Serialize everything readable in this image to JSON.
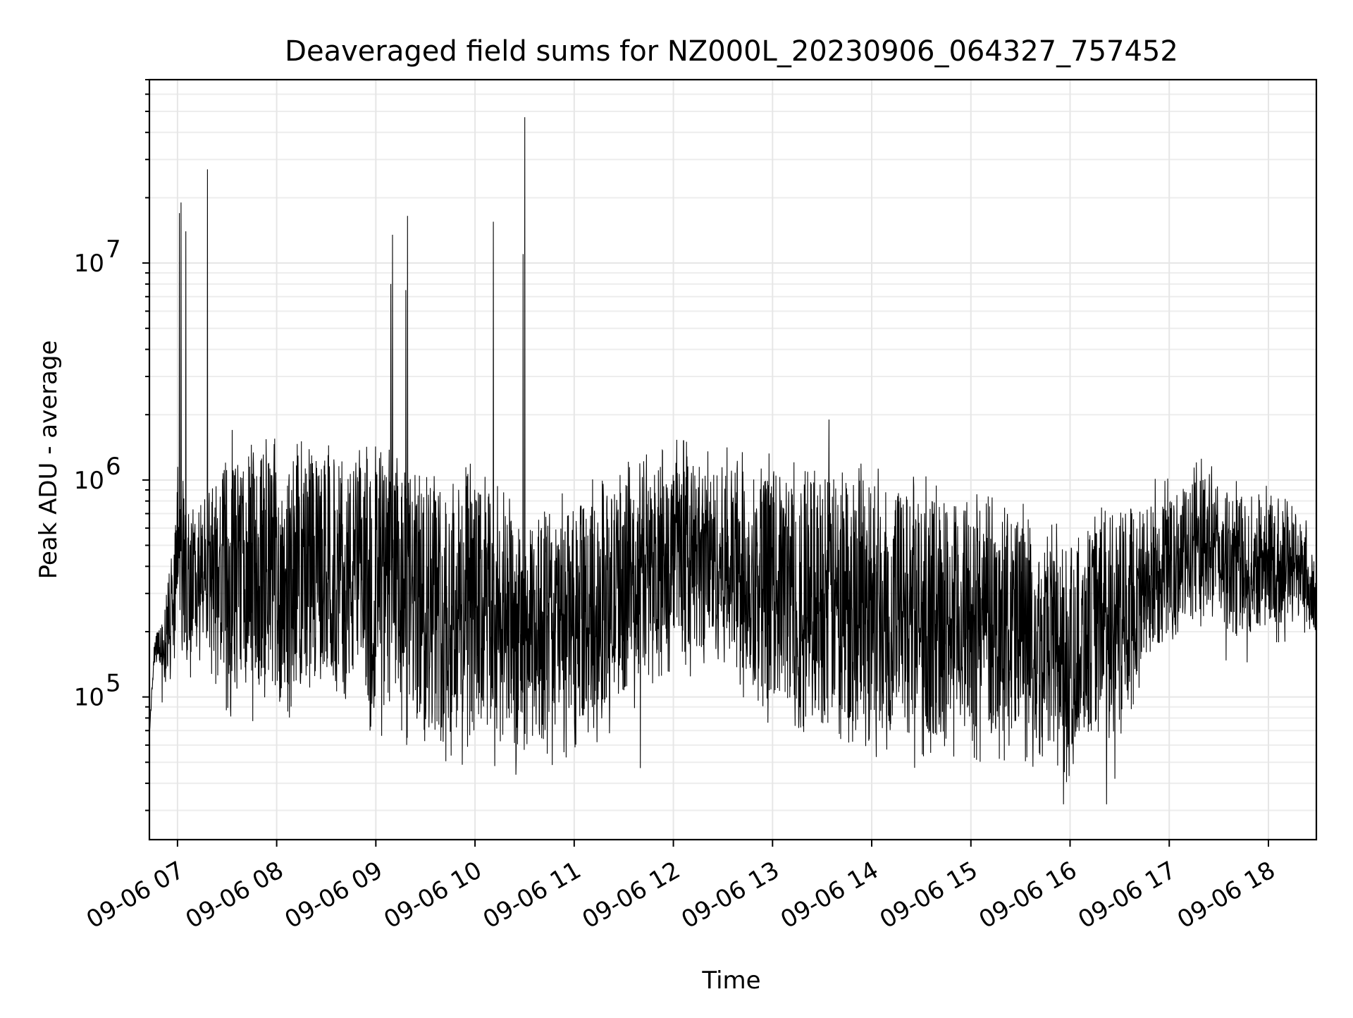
{
  "chart_data": {
    "type": "line",
    "title": "Deaveraged field sums for NZ000L_20230906_064327_757452",
    "xlabel": "Time",
    "ylabel": "Peak ADU - average",
    "x_axis": {
      "kind": "datetime",
      "range": [
        "2023-09-06 06:43",
        "2023-09-06 18:29"
      ],
      "ticks": [
        {
          "value": "2023-09-06 07:00",
          "label": "09-06 07"
        },
        {
          "value": "2023-09-06 08:00",
          "label": "09-06 08"
        },
        {
          "value": "2023-09-06 09:00",
          "label": "09-06 09"
        },
        {
          "value": "2023-09-06 10:00",
          "label": "09-06 10"
        },
        {
          "value": "2023-09-06 11:00",
          "label": "09-06 11"
        },
        {
          "value": "2023-09-06 12:00",
          "label": "09-06 12"
        },
        {
          "value": "2023-09-06 13:00",
          "label": "09-06 13"
        },
        {
          "value": "2023-09-06 14:00",
          "label": "09-06 14"
        },
        {
          "value": "2023-09-06 15:00",
          "label": "09-06 15"
        },
        {
          "value": "2023-09-06 16:00",
          "label": "09-06 16"
        },
        {
          "value": "2023-09-06 17:00",
          "label": "09-06 17"
        },
        {
          "value": "2023-09-06 18:00",
          "label": "09-06 18"
        }
      ]
    },
    "y_axis": {
      "scale": "log",
      "range": [
        22000,
        70000000
      ],
      "ticks": [
        {
          "value": 100000,
          "base": "10",
          "exp": "5"
        },
        {
          "value": 1000000,
          "base": "10",
          "exp": "6"
        },
        {
          "value": 10000000,
          "base": "10",
          "exp": "7"
        }
      ]
    },
    "grid": true,
    "legend": "none",
    "series_color": "#000000",
    "envelope": [
      [
        "2023-09-06 06:43",
        65000,
        70000
      ],
      [
        "2023-09-06 06:46",
        150000,
        180000
      ],
      [
        "2023-09-06 06:52",
        120000,
        250000
      ],
      [
        "2023-09-06 06:56",
        120000,
        400000
      ],
      [
        "2023-09-06 07:00",
        200000,
        900000
      ],
      [
        "2023-09-06 07:10",
        160000,
        700000
      ],
      [
        "2023-09-06 07:30",
        120000,
        1100000
      ],
      [
        "2023-09-06 08:00",
        110000,
        1200000
      ],
      [
        "2023-09-06 08:30",
        130000,
        1150000
      ],
      [
        "2023-09-06 09:00",
        100000,
        1100000
      ],
      [
        "2023-09-06 09:30",
        80000,
        1000000
      ],
      [
        "2023-09-06 10:00",
        70000,
        900000
      ],
      [
        "2023-09-06 10:30",
        60000,
        550000
      ],
      [
        "2023-09-06 11:00",
        80000,
        700000
      ],
      [
        "2023-09-06 11:30",
        110000,
        900000
      ],
      [
        "2023-09-06 12:00",
        200000,
        1200000
      ],
      [
        "2023-09-06 12:30",
        150000,
        1100000
      ],
      [
        "2023-09-06 13:00",
        110000,
        1000000
      ],
      [
        "2023-09-06 13:30",
        80000,
        1000000
      ],
      [
        "2023-09-06 14:00",
        80000,
        900000
      ],
      [
        "2023-09-06 14:30",
        70000,
        800000
      ],
      [
        "2023-09-06 15:00",
        75000,
        700000
      ],
      [
        "2023-09-06 15:30",
        70000,
        600000
      ],
      [
        "2023-09-06 16:00",
        60000,
        450000
      ],
      [
        "2023-09-06 16:30",
        100000,
        700000
      ],
      [
        "2023-09-06 17:00",
        200000,
        800000
      ],
      [
        "2023-09-06 17:20",
        250000,
        1000000
      ],
      [
        "2023-09-06 17:40",
        200000,
        800000
      ],
      [
        "2023-09-06 18:00",
        220000,
        850000
      ],
      [
        "2023-09-06 18:15",
        250000,
        800000
      ],
      [
        "2023-09-06 18:29",
        200000,
        400000
      ]
    ],
    "spikes": [
      [
        "2023-09-06 07:01",
        17000000
      ],
      [
        "2023-09-06 07:02",
        19000000
      ],
      [
        "2023-09-06 07:05",
        14000000
      ],
      [
        "2023-09-06 07:18",
        27000000
      ],
      [
        "2023-09-06 07:33",
        1700000
      ],
      [
        "2023-09-06 09:09",
        8000000
      ],
      [
        "2023-09-06 09:10",
        13500000
      ],
      [
        "2023-09-06 09:18",
        7500000
      ],
      [
        "2023-09-06 09:19",
        16500000
      ],
      [
        "2023-09-06 10:11",
        15500000
      ],
      [
        "2023-09-06 10:29",
        11000000
      ],
      [
        "2023-09-06 10:30",
        47000000
      ],
      [
        "2023-09-06 13:34",
        1900000
      ],
      [
        "2023-09-06 15:56",
        32000
      ],
      [
        "2023-09-06 16:22",
        32000
      ],
      [
        "2023-09-06 16:27",
        42000
      ],
      [
        "2023-09-06 11:40",
        47000
      ]
    ]
  }
}
